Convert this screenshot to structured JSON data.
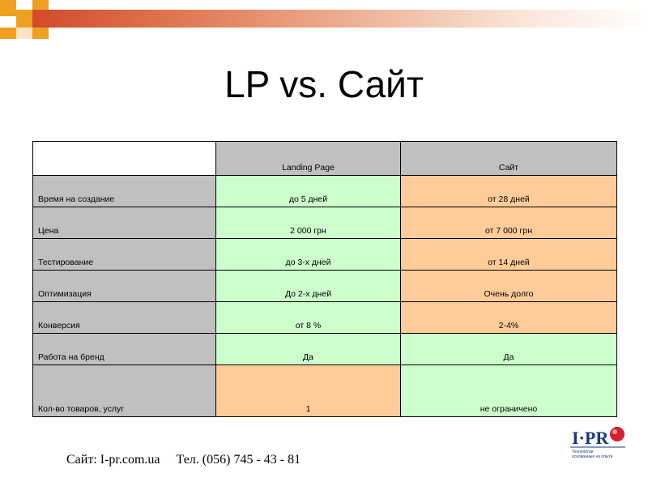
{
  "slide": {
    "title": "LP vs. Сайт",
    "accent_colors": {
      "orange": "#f0a020",
      "red": "#d24a2a",
      "green_cell": "#ccffcc",
      "orange_cell": "#ffcc99",
      "gray_cell": "#c0c0c0"
    }
  },
  "table": {
    "headers": [
      "",
      "Landing Page",
      "Сайт"
    ],
    "rows": [
      {
        "label": "Время на создание",
        "lp": "до 5 дней",
        "site": "от 28 дней",
        "lp_color": "green",
        "site_color": "orange"
      },
      {
        "label": "Цена",
        "lp": "2 000 грн",
        "site": "от 7 000 грн",
        "lp_color": "green",
        "site_color": "orange"
      },
      {
        "label": "Тестирование",
        "lp": "до 3-х дней",
        "site": "от 14 дней",
        "lp_color": "green",
        "site_color": "orange"
      },
      {
        "label": "Оптимизация",
        "lp": "До 2-х дней",
        "site": "Очень долго",
        "lp_color": "green",
        "site_color": "orange"
      },
      {
        "label": "Конверсия",
        "lp": "от 8 %",
        "site": "2-4%",
        "lp_color": "green",
        "site_color": "orange"
      },
      {
        "label": "Работа на бренд",
        "lp": "Да",
        "site": "Да",
        "lp_color": "green",
        "site_color": "green"
      },
      {
        "label": "Кол-во товаров, услуг",
        "lp": "1",
        "site": "не ограничено",
        "lp_color": "orange",
        "site_color": "green"
      }
    ]
  },
  "footer": {
    "site": "Сайт: I-pr.com.ua",
    "phone": "Тел. (056) 745 - 43 - 81"
  },
  "logo": {
    "name": "I·PR",
    "tagline_1": "Технологии",
    "tagline_2": "основанные на опыте"
  }
}
